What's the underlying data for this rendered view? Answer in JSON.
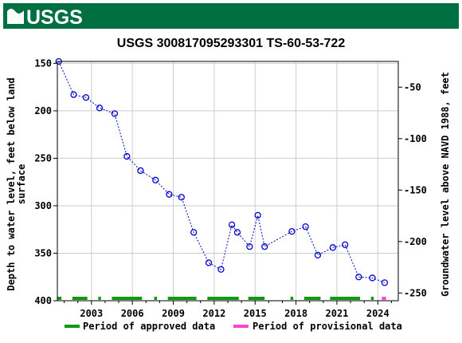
{
  "header": {
    "logo_text": "USGS",
    "banner_color": "#006f41"
  },
  "chart_data": {
    "type": "scatter",
    "title": "USGS 300817095293301 TS-60-53-722",
    "ylabel_left": "Depth to water level, feet below land surface",
    "ylabel_left_lines": [
      "Depth to water level, feet below land",
      "surface"
    ],
    "ylabel_right": "Groundwater level above NAVD 1988, feet",
    "xlim": [
      2000.5,
      2025.5
    ],
    "ylim_left": [
      400,
      148
    ],
    "ylim_right": [
      -257.5,
      -25
    ],
    "x_ticks": [
      2003,
      2006,
      2009,
      2012,
      2015,
      2018,
      2021,
      2024
    ],
    "y_ticks_left": [
      150,
      200,
      250,
      300,
      350,
      400
    ],
    "y_ticks_right": [
      -50,
      -100,
      -150,
      -200,
      -250
    ],
    "grid": true,
    "marker_color": "#0000cc",
    "series": [
      {
        "values": [
          {
            "x": 2000.6,
            "y": 148
          },
          {
            "x": 2001.7,
            "y": 183
          },
          {
            "x": 2002.6,
            "y": 186
          },
          {
            "x": 2003.6,
            "y": 197
          },
          {
            "x": 2004.7,
            "y": 203
          },
          {
            "x": 2005.6,
            "y": 248
          },
          {
            "x": 2006.6,
            "y": 263
          },
          {
            "x": 2007.7,
            "y": 273
          },
          {
            "x": 2008.7,
            "y": 288
          },
          {
            "x": 2009.6,
            "y": 291
          },
          {
            "x": 2010.5,
            "y": 328
          },
          {
            "x": 2011.6,
            "y": 360
          },
          {
            "x": 2012.5,
            "y": 367
          },
          {
            "x": 2013.3,
            "y": 320
          },
          {
            "x": 2013.7,
            "y": 328
          },
          {
            "x": 2014.6,
            "y": 343
          },
          {
            "x": 2015.2,
            "y": 310
          },
          {
            "x": 2015.7,
            "y": 343
          },
          {
            "x": 2017.7,
            "y": 327
          },
          {
            "x": 2018.7,
            "y": 322
          },
          {
            "x": 2019.6,
            "y": 352
          },
          {
            "x": 2020.7,
            "y": 344
          },
          {
            "x": 2021.6,
            "y": 341
          },
          {
            "x": 2022.6,
            "y": 375
          },
          {
            "x": 2023.6,
            "y": 376
          },
          {
            "x": 2024.5,
            "y": 381
          }
        ]
      }
    ],
    "approved_periods": [
      [
        2000.5,
        2000.8
      ],
      [
        2001.6,
        2002.7
      ],
      [
        2003.5,
        2003.7
      ],
      [
        2004.5,
        2006.7
      ],
      [
        2007.6,
        2007.8
      ],
      [
        2008.6,
        2010.7
      ],
      [
        2011.5,
        2013.8
      ],
      [
        2014.5,
        2015.7
      ],
      [
        2017.6,
        2017.8
      ],
      [
        2018.6,
        2019.8
      ],
      [
        2020.5,
        2022.7
      ],
      [
        2023.5,
        2023.7
      ]
    ],
    "provisional_periods": [
      [
        2024.3,
        2024.6
      ]
    ],
    "approved_color": "#119911",
    "provisional_color": "#ff44cc",
    "legend": {
      "placement": "bottom",
      "approved_label": "Period of approved data",
      "provisional_label": "Period of provisional data"
    }
  }
}
